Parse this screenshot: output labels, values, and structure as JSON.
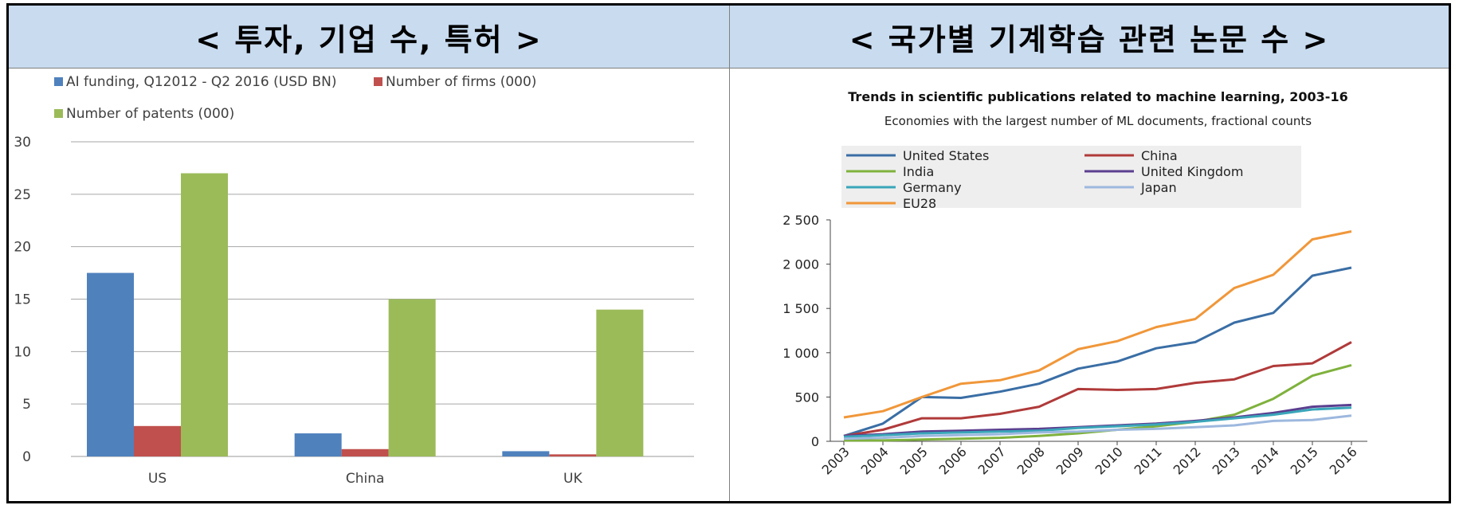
{
  "headers": {
    "left": "< 투자, 기업 수, 특허 >",
    "right": "< 국가별 기계학습 관련 논문 수 >"
  },
  "chart_data": [
    {
      "type": "bar",
      "title": "",
      "xlabel": "",
      "ylabel": "",
      "categories": [
        "US",
        "China",
        "UK"
      ],
      "ylim": [
        0,
        30
      ],
      "yticks": [
        0,
        5,
        10,
        15,
        20,
        25,
        30
      ],
      "grid": true,
      "legend_position": "top-left",
      "series": [
        {
          "name": "AI funding, Q12012 - Q2 2016 (USD BN)",
          "color": "#4f81bd",
          "values": [
            17.5,
            2.2,
            0.5
          ]
        },
        {
          "name": "Number of firms (000)",
          "color": "#c0504d",
          "values": [
            2.9,
            0.7,
            0.2
          ]
        },
        {
          "name": "Number of patents (000)",
          "color": "#9bbb59",
          "values": [
            27,
            15,
            14
          ]
        }
      ]
    },
    {
      "type": "line",
      "title": "Trends in scientific publications related to machine learning, 2003-16",
      "subtitle": "Economies with the largest number of ML documents, fractional counts",
      "xlabel": "",
      "ylabel": "",
      "x": [
        "2003",
        "2004",
        "2005",
        "2006",
        "2007",
        "2008",
        "2009",
        "2010",
        "2011",
        "2012",
        "2013",
        "2014",
        "2015",
        "2016"
      ],
      "ylim": [
        0,
        2500
      ],
      "yticks": [
        0,
        500,
        1000,
        1500,
        2000,
        2500
      ],
      "ytick_labels": [
        "0",
        "500",
        "1 000",
        "1 500",
        "2 000",
        "2 500"
      ],
      "grid": false,
      "legend_position": "top",
      "series": [
        {
          "name": "United States",
          "color": "#3a6ea5",
          "values": [
            60,
            200,
            500,
            490,
            560,
            650,
            820,
            900,
            1050,
            1120,
            1340,
            1450,
            1870,
            1960
          ]
        },
        {
          "name": "China",
          "color": "#b03a3a",
          "values": [
            60,
            130,
            260,
            260,
            310,
            390,
            590,
            580,
            590,
            660,
            700,
            850,
            880,
            1120
          ]
        },
        {
          "name": "India",
          "color": "#7fb13d",
          "values": [
            10,
            10,
            20,
            30,
            40,
            60,
            90,
            130,
            170,
            220,
            300,
            480,
            740,
            860
          ]
        },
        {
          "name": "United Kingdom",
          "color": "#5b3f8f",
          "values": [
            60,
            80,
            110,
            120,
            130,
            140,
            160,
            180,
            200,
            230,
            270,
            320,
            390,
            410
          ]
        },
        {
          "name": "Germany",
          "color": "#3aa6b9",
          "values": [
            50,
            70,
            90,
            100,
            110,
            120,
            150,
            170,
            190,
            220,
            260,
            300,
            360,
            380
          ]
        },
        {
          "name": "Japan",
          "color": "#9db8de",
          "values": [
            30,
            40,
            60,
            70,
            80,
            100,
            110,
            130,
            140,
            160,
            180,
            230,
            240,
            290
          ]
        },
        {
          "name": "EU28",
          "color": "#f0973a",
          "values": [
            270,
            340,
            500,
            650,
            690,
            800,
            1040,
            1130,
            1290,
            1380,
            1730,
            1880,
            2280,
            2370
          ]
        }
      ]
    }
  ]
}
